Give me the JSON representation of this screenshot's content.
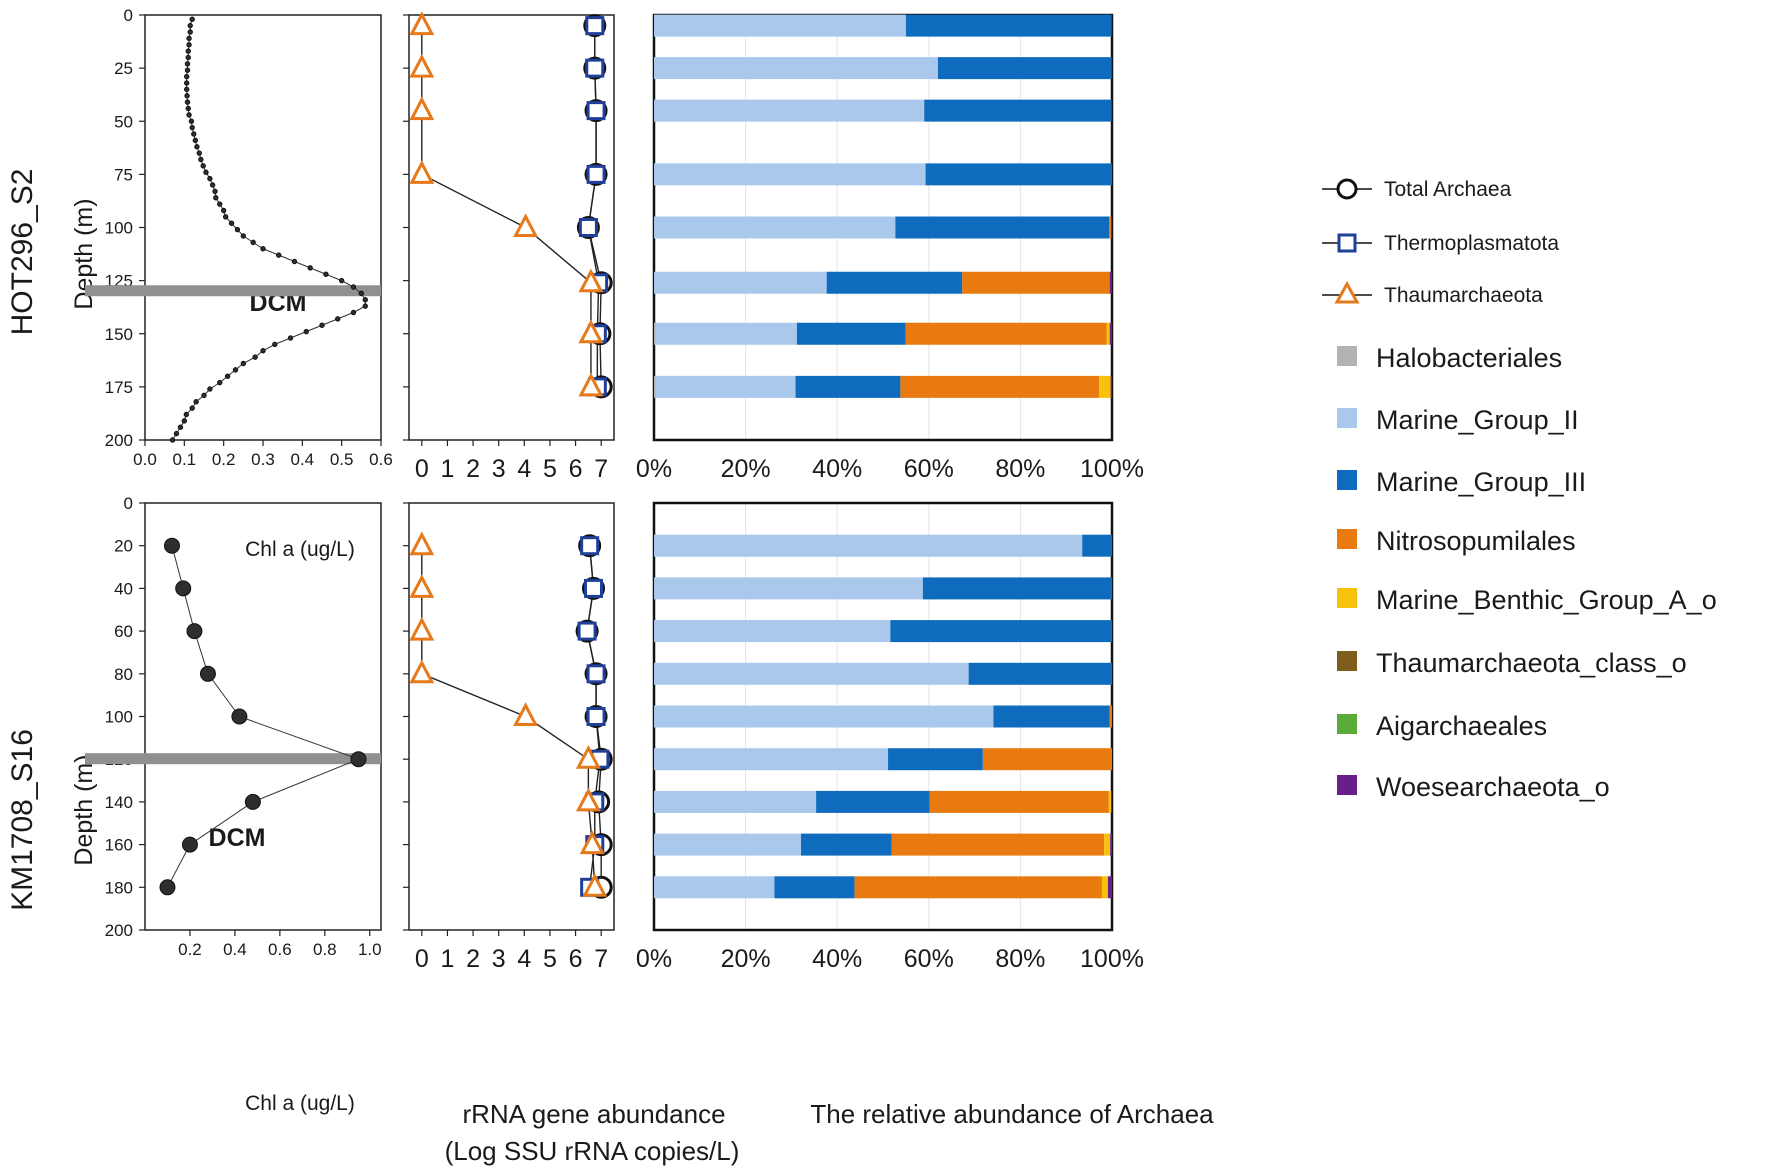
{
  "panels": [
    {
      "id": "top",
      "row_label": "HOT296_S2",
      "dcm_label": "DCM"
    },
    {
      "id": "bottom",
      "row_label": "KM1708_S16",
      "dcm_label": "DCM"
    }
  ],
  "axis_text": {
    "depth_label": "Depth (m)",
    "chl_label": "Chl a (ug/L)",
    "abund_label_1": "rRNA gene abundance",
    "abund_label_2": "(Log SSU rRNA copies/L)",
    "rel_label": "The relative abundance of Archaea"
  },
  "legend": {
    "lines": [
      {
        "name": "Total Archaea",
        "marker": "circle-icon",
        "color": "#111111"
      },
      {
        "name": "Thermoplasmatota",
        "marker": "square-icon",
        "color": "#1f3f99"
      },
      {
        "name": "Thaumarchaeota",
        "marker": "triangle-icon",
        "color": "#e67a1a"
      }
    ],
    "taxa": [
      {
        "name": "Halobacteriales",
        "color": "#b3b3b3"
      },
      {
        "name": "Marine_Group_II",
        "color": "#a9c8eb"
      },
      {
        "name": "Marine_Group_III",
        "color": "#0e6bbd"
      },
      {
        "name": "Nitrosopumilales",
        "color": "#e87a10"
      },
      {
        "name": "Marine_Benthic_Group_A_o",
        "color": "#f9c20a"
      },
      {
        "name": "Thaumarchaeota_class_o",
        "color": "#7f5e1d"
      },
      {
        "name": "Aigarchaeales",
        "color": "#5aac3a"
      },
      {
        "name": "Woesearchaeota_o",
        "color": "#6a1e8c"
      }
    ]
  },
  "chart_data": [
    {
      "id": "chl_top",
      "type": "line",
      "title": "",
      "xlabel": "Chl a (ug/L)",
      "ylabel": "Depth (m)",
      "xlim": [
        0,
        0.6
      ],
      "ylim": [
        200,
        0
      ],
      "x_ticks": [
        0.0,
        0.1,
        0.2,
        0.3,
        0.4,
        0.5,
        0.6
      ],
      "x_tick_labels": [
        "0.0",
        "0.1",
        "0.2",
        "0.3",
        "0.4",
        "0.5",
        "0.6"
      ],
      "y_ticks": [
        0,
        25,
        50,
        75,
        100,
        125,
        150,
        175,
        200
      ],
      "y_tick_labels": [
        "0",
        "25",
        "50",
        "75",
        "100",
        "125",
        "150",
        "175",
        "200"
      ],
      "dcm_depth": 130,
      "points": [
        [
          0.12,
          2
        ],
        [
          0.115,
          5
        ],
        [
          0.115,
          8
        ],
        [
          0.112,
          11
        ],
        [
          0.112,
          14
        ],
        [
          0.11,
          17
        ],
        [
          0.11,
          20
        ],
        [
          0.108,
          23
        ],
        [
          0.108,
          26
        ],
        [
          0.106,
          29
        ],
        [
          0.106,
          32
        ],
        [
          0.106,
          35
        ],
        [
          0.107,
          38
        ],
        [
          0.108,
          41
        ],
        [
          0.11,
          44
        ],
        [
          0.112,
          47
        ],
        [
          0.118,
          50
        ],
        [
          0.12,
          53
        ],
        [
          0.124,
          56
        ],
        [
          0.128,
          59
        ],
        [
          0.132,
          62
        ],
        [
          0.138,
          65
        ],
        [
          0.142,
          68
        ],
        [
          0.148,
          71
        ],
        [
          0.155,
          74
        ],
        [
          0.165,
          77
        ],
        [
          0.172,
          80
        ],
        [
          0.178,
          83
        ],
        [
          0.18,
          86
        ],
        [
          0.19,
          89
        ],
        [
          0.2,
          92
        ],
        [
          0.205,
          95
        ],
        [
          0.22,
          98
        ],
        [
          0.235,
          101
        ],
        [
          0.25,
          104
        ],
        [
          0.275,
          107
        ],
        [
          0.3,
          110
        ],
        [
          0.34,
          113
        ],
        [
          0.38,
          116
        ],
        [
          0.42,
          119
        ],
        [
          0.46,
          122
        ],
        [
          0.5,
          125
        ],
        [
          0.53,
          128
        ],
        [
          0.55,
          131
        ],
        [
          0.56,
          134
        ],
        [
          0.56,
          137
        ],
        [
          0.53,
          140
        ],
        [
          0.49,
          143
        ],
        [
          0.45,
          146
        ],
        [
          0.41,
          149
        ],
        [
          0.37,
          152
        ],
        [
          0.33,
          155
        ],
        [
          0.3,
          158
        ],
        [
          0.28,
          161
        ],
        [
          0.25,
          164
        ],
        [
          0.23,
          167
        ],
        [
          0.21,
          170
        ],
        [
          0.19,
          173
        ],
        [
          0.165,
          176
        ],
        [
          0.15,
          179
        ],
        [
          0.13,
          182
        ],
        [
          0.12,
          185
        ],
        [
          0.105,
          188
        ],
        [
          0.1,
          191
        ],
        [
          0.09,
          194
        ],
        [
          0.08,
          197
        ],
        [
          0.07,
          200
        ]
      ]
    },
    {
      "id": "chl_bottom",
      "type": "line",
      "title": "",
      "xlabel": "Chl a (ug/L)",
      "ylabel": "Depth (m)",
      "xlim": [
        0,
        1.05
      ],
      "ylim": [
        200,
        0
      ],
      "x_ticks": [
        0.2,
        0.4,
        0.6,
        0.8,
        1.0
      ],
      "x_tick_labels": [
        "0.2",
        "0.4",
        "0.6",
        "0.8",
        "1.0"
      ],
      "y_ticks": [
        0,
        20,
        40,
        60,
        80,
        100,
        120,
        140,
        160,
        180,
        200
      ],
      "y_tick_labels": [
        "0",
        "20",
        "40",
        "60",
        "80",
        "100",
        "120",
        "140",
        "160",
        "180",
        "200"
      ],
      "dcm_depth": 120,
      "points": [
        [
          0.12,
          20
        ],
        [
          0.17,
          40
        ],
        [
          0.22,
          60
        ],
        [
          0.28,
          80
        ],
        [
          0.42,
          100
        ],
        [
          0.95,
          120
        ],
        [
          0.48,
          140
        ],
        [
          0.2,
          160
        ],
        [
          0.1,
          180
        ]
      ]
    },
    {
      "id": "abund_top",
      "type": "line",
      "title": "",
      "xlabel": "rRNA gene abundance (Log SSU rRNA copies/L)",
      "ylabel": "",
      "xlim": [
        -0.5,
        7.5
      ],
      "ylim": [
        200,
        0
      ],
      "x_ticks": [
        0,
        1,
        2,
        3,
        4,
        5,
        6,
        7
      ],
      "x_tick_labels": [
        "0",
        "1",
        "2",
        "3",
        "4",
        "5",
        "6",
        "7"
      ],
      "series": [
        {
          "name": "Total Archaea",
          "marker": "circle",
          "x": [
            6.75,
            6.75,
            6.8,
            6.8,
            6.5,
            7.0,
            6.95,
            7.0
          ],
          "depth": [
            5,
            25,
            45,
            75,
            100,
            126,
            150,
            175
          ]
        },
        {
          "name": "Thermoplasmatota",
          "marker": "square",
          "x": [
            6.75,
            6.75,
            6.8,
            6.8,
            6.5,
            6.9,
            6.85,
            6.85
          ],
          "depth": [
            5,
            25,
            45,
            75,
            100,
            126,
            150,
            175
          ]
        },
        {
          "name": "Thaumarchaeota",
          "marker": "triangle",
          "x": [
            0,
            0,
            0,
            0,
            4.05,
            6.6,
            6.6,
            6.6
          ],
          "depth": [
            5,
            25,
            45,
            75,
            100,
            126,
            150,
            175
          ]
        }
      ]
    },
    {
      "id": "abund_bottom",
      "type": "line",
      "title": "",
      "xlabel": "rRNA gene abundance (Log SSU rRNA copies/L)",
      "ylabel": "",
      "xlim": [
        -0.5,
        7.5
      ],
      "ylim": [
        200,
        0
      ],
      "x_ticks": [
        0,
        1,
        2,
        3,
        4,
        5,
        6,
        7
      ],
      "x_tick_labels": [
        "0",
        "1",
        "2",
        "3",
        "4",
        "5",
        "6",
        "7"
      ],
      "series": [
        {
          "name": "Total Archaea",
          "marker": "circle",
          "x": [
            6.55,
            6.7,
            6.45,
            6.8,
            6.8,
            7.0,
            6.9,
            7.0,
            7.0
          ],
          "depth": [
            20,
            40,
            60,
            80,
            100,
            120,
            140,
            160,
            180
          ]
        },
        {
          "name": "Thermoplasmatota",
          "marker": "square",
          "x": [
            6.55,
            6.7,
            6.45,
            6.8,
            6.8,
            6.95,
            6.75,
            6.75,
            6.55
          ],
          "depth": [
            20,
            40,
            60,
            80,
            100,
            120,
            140,
            160,
            180
          ]
        },
        {
          "name": "Thaumarchaeota",
          "marker": "triangle",
          "x": [
            0,
            0,
            0,
            0,
            4.05,
            6.5,
            6.5,
            6.65,
            6.75
          ],
          "depth": [
            20,
            40,
            60,
            80,
            100,
            120,
            140,
            160,
            180
          ]
        }
      ]
    },
    {
      "id": "rel_top",
      "type": "bar",
      "orientation": "horizontal",
      "stacked": true,
      "title": "",
      "xlabel": "",
      "xlim": [
        0,
        100
      ],
      "x_tick_labels": [
        "0%",
        "20%",
        "40%",
        "60%",
        "80%",
        "100%"
      ],
      "depths": [
        5,
        25,
        45,
        75,
        100,
        126,
        150,
        175
      ],
      "series": [
        {
          "name": "Halobacteriales",
          "values": [
            0,
            0,
            0,
            0,
            0,
            0,
            0.3,
            0.3
          ]
        },
        {
          "name": "Marine_Group_II",
          "values": [
            55,
            62,
            59,
            59.3,
            52.7,
            37.7,
            30.9,
            30.6
          ]
        },
        {
          "name": "Marine_Group_III",
          "values": [
            44.8,
            37.8,
            40.8,
            40.7,
            46.7,
            29.6,
            23.7,
            22.9
          ]
        },
        {
          "name": "Nitrosopumilales",
          "values": [
            0,
            0,
            0,
            0,
            0.4,
            32.2,
            43.9,
            43.4
          ]
        },
        {
          "name": "Marine_Benthic_Group_A_o",
          "values": [
            0,
            0,
            0,
            0,
            0,
            0,
            0.7,
            2.5
          ]
        },
        {
          "name": "Thaumarchaeota_class_o",
          "values": [
            0,
            0,
            0,
            0,
            0,
            0,
            0,
            0
          ]
        },
        {
          "name": "Aigarchaeales",
          "values": [
            0,
            0,
            0,
            0,
            0,
            0,
            0,
            0
          ]
        },
        {
          "name": "Woesearchaeota_o",
          "values": [
            0.2,
            0.2,
            0.2,
            0,
            0.2,
            0.5,
            0.5,
            0.3
          ]
        }
      ]
    },
    {
      "id": "rel_bottom",
      "type": "bar",
      "orientation": "horizontal",
      "stacked": true,
      "title": "",
      "xlabel": "The relative abundance of Archaea",
      "xlim": [
        0,
        100
      ],
      "x_tick_labels": [
        "0%",
        "20%",
        "40%",
        "60%",
        "80%",
        "100%"
      ],
      "depths": [
        20,
        40,
        60,
        80,
        100,
        120,
        140,
        160,
        180
      ],
      "series": [
        {
          "name": "Halobacteriales",
          "values": [
            0,
            0,
            0,
            0,
            0,
            0,
            0,
            0,
            0
          ]
        },
        {
          "name": "Marine_Group_II",
          "values": [
            93.5,
            58.7,
            51.6,
            68.7,
            74.1,
            51.1,
            35.4,
            32.1,
            26.3
          ]
        },
        {
          "name": "Marine_Group_III",
          "values": [
            6.5,
            41.3,
            48.4,
            31.3,
            25.4,
            20.7,
            24.8,
            19.8,
            17.5
          ]
        },
        {
          "name": "Nitrosopumilales",
          "values": [
            0,
            0,
            0,
            0,
            0.5,
            28.2,
            39.1,
            46.4,
            54.0
          ]
        },
        {
          "name": "Marine_Benthic_Group_A_o",
          "values": [
            0,
            0,
            0,
            0,
            0,
            0,
            0.5,
            1.3,
            1.3
          ]
        },
        {
          "name": "Thaumarchaeota_class_o",
          "values": [
            0,
            0,
            0,
            0,
            0,
            0,
            0,
            0,
            0
          ]
        },
        {
          "name": "Aigarchaeales",
          "values": [
            0,
            0,
            0,
            0,
            0,
            0,
            0,
            0,
            0
          ]
        },
        {
          "name": "Woesearchaeota_o",
          "values": [
            0,
            0,
            0,
            0,
            0,
            0,
            0.2,
            0.4,
            0.9
          ]
        }
      ]
    }
  ]
}
